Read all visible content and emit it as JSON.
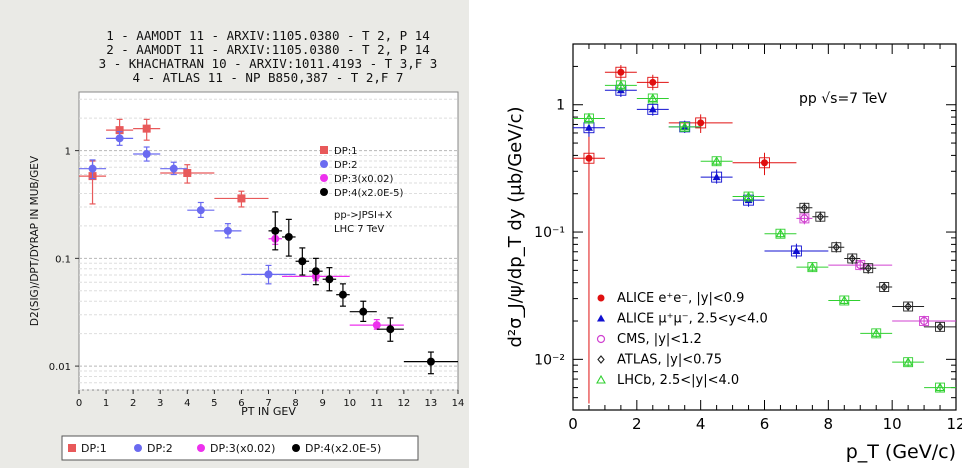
{
  "chart_data": [
    {
      "type": "scatter",
      "title_lines": [
        "1 - AAMODT 11 - ARXIV:1105.0380 - T 2, P 14",
        "2 - AAMODT 11 - ARXIV:1105.0380 - T 2, P 14",
        "3 - KHACHATRAN 10 - ARXIV:1011.4193 - T 3,F 3",
        "4 - ATLAS 11 - NP B850,387 - T 2,F 7"
      ],
      "xlabel": "PT IN GEV",
      "ylabel": "D2(SIG)/DPT/DYRAP IN MUB/GEV",
      "xlim": [
        0,
        14
      ],
      "ylim": [
        0.006,
        3.5
      ],
      "yscale": "log",
      "grid": true,
      "x_ticks": [
        "0",
        "1",
        "2",
        "3",
        "4",
        "5",
        "6",
        "7",
        "8",
        "9",
        "10",
        "11",
        "12",
        "13",
        "14"
      ],
      "y_ticks": [
        {
          "label": "1",
          "value": 1
        },
        {
          "label": "0.1",
          "value": 0.1
        },
        {
          "label": "0.01",
          "value": 0.01
        }
      ],
      "legend_inner": [
        "DP:1",
        "DP:2",
        "DP:3(x0.02)",
        "DP:4(x2.0E-5)"
      ],
      "annotation_lines": [
        "pp->JPSI+X",
        "LHC 7 TeV"
      ],
      "legend_bottom": [
        "DP:1",
        "DP:2",
        "DP:3(x0.02)",
        "DP:4(x2.0E-5)"
      ],
      "series": [
        {
          "name": "DP:1",
          "color": "#e8595a",
          "marker": "square",
          "points": [
            {
              "x": 0.5,
              "y": 0.58,
              "xerr": 0.5,
              "ylo": 0.32,
              "yhi": 0.8
            },
            {
              "x": 1.5,
              "y": 1.55,
              "xerr": 0.5,
              "ylo": 1.25,
              "yhi": 1.95
            },
            {
              "x": 2.5,
              "y": 1.6,
              "xerr": 0.5,
              "ylo": 1.25,
              "yhi": 1.95
            },
            {
              "x": 4.0,
              "y": 0.62,
              "xerr": 1.0,
              "ylo": 0.5,
              "yhi": 0.74
            },
            {
              "x": 6.0,
              "y": 0.36,
              "xerr": 1.0,
              "ylo": 0.3,
              "yhi": 0.42
            }
          ]
        },
        {
          "name": "DP:2",
          "color": "#6a6af0",
          "marker": "circle",
          "points": [
            {
              "x": 0.5,
              "y": 0.68,
              "xerr": 0.5,
              "ylo": 0.55,
              "yhi": 0.82
            },
            {
              "x": 1.5,
              "y": 1.3,
              "xerr": 0.5,
              "ylo": 1.12,
              "yhi": 1.5
            },
            {
              "x": 2.5,
              "y": 0.93,
              "xerr": 0.5,
              "ylo": 0.8,
              "yhi": 1.08
            },
            {
              "x": 3.5,
              "y": 0.68,
              "xerr": 0.5,
              "ylo": 0.6,
              "yhi": 0.78
            },
            {
              "x": 4.5,
              "y": 0.28,
              "xerr": 0.5,
              "ylo": 0.24,
              "yhi": 0.33
            },
            {
              "x": 5.5,
              "y": 0.18,
              "xerr": 0.5,
              "ylo": 0.155,
              "yhi": 0.21
            },
            {
              "x": 7.0,
              "y": 0.071,
              "xerr": 1.0,
              "ylo": 0.058,
              "yhi": 0.086
            }
          ]
        },
        {
          "name": "DP:3(x0.02)",
          "color": "#ee30ee",
          "marker": "circle",
          "points": [
            {
              "x": 7.25,
              "y": 0.152,
              "xerr": 0.25,
              "ylo": 0.135,
              "yhi": 0.17
            },
            {
              "x": 8.75,
              "y": 0.068,
              "xerr": 1.25,
              "ylo": 0.062,
              "yhi": 0.075
            },
            {
              "x": 11.0,
              "y": 0.024,
              "xerr": 1.0,
              "ylo": 0.022,
              "yhi": 0.027
            }
          ]
        },
        {
          "name": "DP:4(x2.0E-5)",
          "color": "#000000",
          "marker": "circle",
          "points": [
            {
              "x": 7.25,
              "y": 0.18,
              "xerr": 0.25,
              "ylo": 0.12,
              "yhi": 0.27
            },
            {
              "x": 7.75,
              "y": 0.158,
              "xerr": 0.25,
              "ylo": 0.105,
              "yhi": 0.23
            },
            {
              "x": 8.25,
              "y": 0.094,
              "xerr": 0.25,
              "ylo": 0.07,
              "yhi": 0.125
            },
            {
              "x": 8.75,
              "y": 0.076,
              "xerr": 0.25,
              "ylo": 0.057,
              "yhi": 0.1
            },
            {
              "x": 9.25,
              "y": 0.064,
              "xerr": 0.25,
              "ylo": 0.05,
              "yhi": 0.082
            },
            {
              "x": 9.75,
              "y": 0.046,
              "xerr": 0.25,
              "ylo": 0.036,
              "yhi": 0.058
            },
            {
              "x": 10.5,
              "y": 0.032,
              "xerr": 0.5,
              "ylo": 0.026,
              "yhi": 0.04
            },
            {
              "x": 11.5,
              "y": 0.022,
              "xerr": 0.5,
              "ylo": 0.017,
              "yhi": 0.028
            },
            {
              "x": 13.0,
              "y": 0.011,
              "xerr": 1.0,
              "ylo": 0.0085,
              "yhi": 0.0135
            }
          ]
        }
      ]
    },
    {
      "type": "scatter",
      "xlabel": "p_T (GeV/c)",
      "ylabel": "d²σ_J/ψ/dp_T dy (μb/GeV/c)",
      "annotation": "pp √s=7 TeV",
      "xlim": [
        0,
        12
      ],
      "ylim": [
        0.004,
        3.0
      ],
      "yscale": "log",
      "grid": false,
      "x_ticks": [
        "0",
        "2",
        "4",
        "6",
        "8",
        "10",
        "12"
      ],
      "y_ticks": [
        {
          "label": "1",
          "value": 1
        },
        {
          "label": "10⁻¹",
          "value": 0.1
        },
        {
          "label": "10⁻²",
          "value": 0.01
        }
      ],
      "legend_position": "bottom-left",
      "series": [
        {
          "name": "ALICE e⁺e⁻, |y|<0.9",
          "color": "#e01010",
          "marker": "filled-circle",
          "points": [
            {
              "x": 0.5,
              "y": 0.38,
              "xerr": 0.5,
              "ylo": 0.0045,
              "yhi": 0.62
            },
            {
              "x": 1.5,
              "y": 1.8,
              "xerr": 0.5,
              "ylo": 1.55,
              "yhi": 2.05
            },
            {
              "x": 2.5,
              "y": 1.5,
              "xerr": 0.5,
              "ylo": 1.3,
              "yhi": 1.72
            },
            {
              "x": 4.0,
              "y": 0.72,
              "xerr": 1.0,
              "ylo": 0.6,
              "yhi": 0.84
            },
            {
              "x": 6.0,
              "y": 0.35,
              "xerr": 1.0,
              "ylo": 0.28,
              "yhi": 0.42
            }
          ]
        },
        {
          "name": "ALICE μ⁺μ⁻, 2.5<y<4.0",
          "color": "#1010d0",
          "marker": "filled-triangle",
          "points": [
            {
              "x": 0.5,
              "y": 0.66,
              "xerr": 0.5,
              "ylo": 0.56,
              "yhi": 0.78
            },
            {
              "x": 1.5,
              "y": 1.3,
              "xerr": 0.5,
              "ylo": 1.15,
              "yhi": 1.46
            },
            {
              "x": 2.5,
              "y": 0.92,
              "xerr": 0.5,
              "ylo": 0.82,
              "yhi": 1.02
            },
            {
              "x": 3.5,
              "y": 0.67,
              "xerr": 0.5,
              "ylo": 0.6,
              "yhi": 0.75
            },
            {
              "x": 4.5,
              "y": 0.27,
              "xerr": 0.5,
              "ylo": 0.24,
              "yhi": 0.31
            },
            {
              "x": 5.5,
              "y": 0.178,
              "xerr": 0.5,
              "ylo": 0.158,
              "yhi": 0.2
            },
            {
              "x": 7.0,
              "y": 0.071,
              "xerr": 1.0,
              "ylo": 0.062,
              "yhi": 0.081
            }
          ]
        },
        {
          "name": "CMS, |y|<1.2",
          "color": "#d040d0",
          "marker": "open-circle",
          "points": [
            {
              "x": 7.25,
              "y": 0.128,
              "xerr": 0.25,
              "ylo": 0.115,
              "yhi": 0.143
            },
            {
              "x": 9.0,
              "y": 0.055,
              "xerr": 1.0,
              "ylo": 0.05,
              "yhi": 0.061
            },
            {
              "x": 11.0,
              "y": 0.02,
              "xerr": 1.0,
              "ylo": 0.018,
              "yhi": 0.022
            }
          ]
        },
        {
          "name": "ATLAS, |y|<0.75",
          "color": "#222222",
          "marker": "open-diamond",
          "points": [
            {
              "x": 7.25,
              "y": 0.155,
              "xerr": 0.25,
              "ylo": 0.14,
              "yhi": 0.17
            },
            {
              "x": 7.75,
              "y": 0.132,
              "xerr": 0.25,
              "ylo": 0.12,
              "yhi": 0.145
            },
            {
              "x": 8.25,
              "y": 0.076,
              "xerr": 0.25,
              "ylo": 0.069,
              "yhi": 0.084
            },
            {
              "x": 8.75,
              "y": 0.062,
              "xerr": 0.25,
              "ylo": 0.056,
              "yhi": 0.068
            },
            {
              "x": 9.25,
              "y": 0.052,
              "xerr": 0.25,
              "ylo": 0.047,
              "yhi": 0.057
            },
            {
              "x": 9.75,
              "y": 0.037,
              "xerr": 0.25,
              "ylo": 0.034,
              "yhi": 0.04
            },
            {
              "x": 10.5,
              "y": 0.026,
              "xerr": 0.5,
              "ylo": 0.024,
              "yhi": 0.028
            },
            {
              "x": 11.5,
              "y": 0.018,
              "xerr": 0.5,
              "ylo": 0.0165,
              "yhi": 0.0195
            }
          ]
        },
        {
          "name": "LHCb, 2.5<|y|<4.0",
          "color": "#30d030",
          "marker": "open-triangle",
          "points": [
            {
              "x": 0.5,
              "y": 0.78,
              "xerr": 0.5,
              "ylo": 0.7,
              "yhi": 0.86
            },
            {
              "x": 1.5,
              "y": 1.42,
              "xerr": 0.5,
              "ylo": 1.3,
              "yhi": 1.55
            },
            {
              "x": 2.5,
              "y": 1.12,
              "xerr": 0.5,
              "ylo": 1.02,
              "yhi": 1.22
            },
            {
              "x": 3.5,
              "y": 0.67,
              "xerr": 0.5,
              "ylo": 0.61,
              "yhi": 0.73
            },
            {
              "x": 4.5,
              "y": 0.36,
              "xerr": 0.5,
              "ylo": 0.33,
              "yhi": 0.39
            },
            {
              "x": 5.5,
              "y": 0.19,
              "xerr": 0.5,
              "ylo": 0.175,
              "yhi": 0.205
            },
            {
              "x": 6.5,
              "y": 0.097,
              "xerr": 0.5,
              "ylo": 0.09,
              "yhi": 0.105
            },
            {
              "x": 7.5,
              "y": 0.053,
              "xerr": 0.5,
              "ylo": 0.049,
              "yhi": 0.057
            },
            {
              "x": 8.5,
              "y": 0.029,
              "xerr": 0.5,
              "ylo": 0.027,
              "yhi": 0.031
            },
            {
              "x": 9.5,
              "y": 0.016,
              "xerr": 0.5,
              "ylo": 0.0148,
              "yhi": 0.0172
            },
            {
              "x": 10.5,
              "y": 0.0095,
              "xerr": 0.5,
              "ylo": 0.0088,
              "yhi": 0.0102
            },
            {
              "x": 11.5,
              "y": 0.006,
              "xerr": 0.5,
              "ylo": 0.0055,
              "yhi": 0.0065
            }
          ]
        }
      ]
    }
  ]
}
